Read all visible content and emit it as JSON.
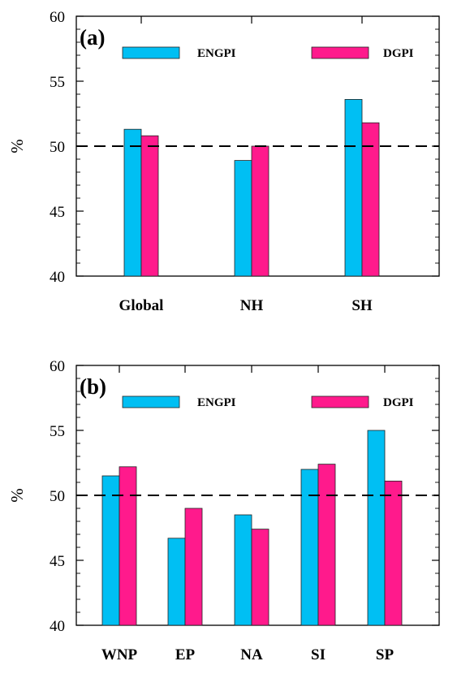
{
  "colors": {
    "engpi": "#00BFF3",
    "dgpi": "#FF1A8C"
  },
  "chart_data": [
    {
      "type": "bar",
      "panel_label": "(a)",
      "ylabel": "%",
      "ylim": [
        40,
        60
      ],
      "yticks": [
        40,
        45,
        50,
        55,
        60
      ],
      "reference_line": 50,
      "categories": [
        "Global",
        "NH",
        "SH"
      ],
      "series": [
        {
          "name": "ENGPI",
          "values": [
            51.3,
            48.9,
            53.6
          ]
        },
        {
          "name": "DGPI",
          "values": [
            50.8,
            50.0,
            51.8
          ]
        }
      ]
    },
    {
      "type": "bar",
      "panel_label": "(b)",
      "ylabel": "%",
      "ylim": [
        40,
        60
      ],
      "yticks": [
        40,
        45,
        50,
        55,
        60
      ],
      "reference_line": 50,
      "categories": [
        "WNP",
        "EP",
        "NA",
        "SI",
        "SP"
      ],
      "series": [
        {
          "name": "ENGPI",
          "values": [
            51.5,
            46.7,
            48.5,
            52.0,
            55.0
          ]
        },
        {
          "name": "DGPI",
          "values": [
            52.2,
            49.0,
            47.4,
            52.4,
            51.1
          ]
        }
      ]
    }
  ]
}
